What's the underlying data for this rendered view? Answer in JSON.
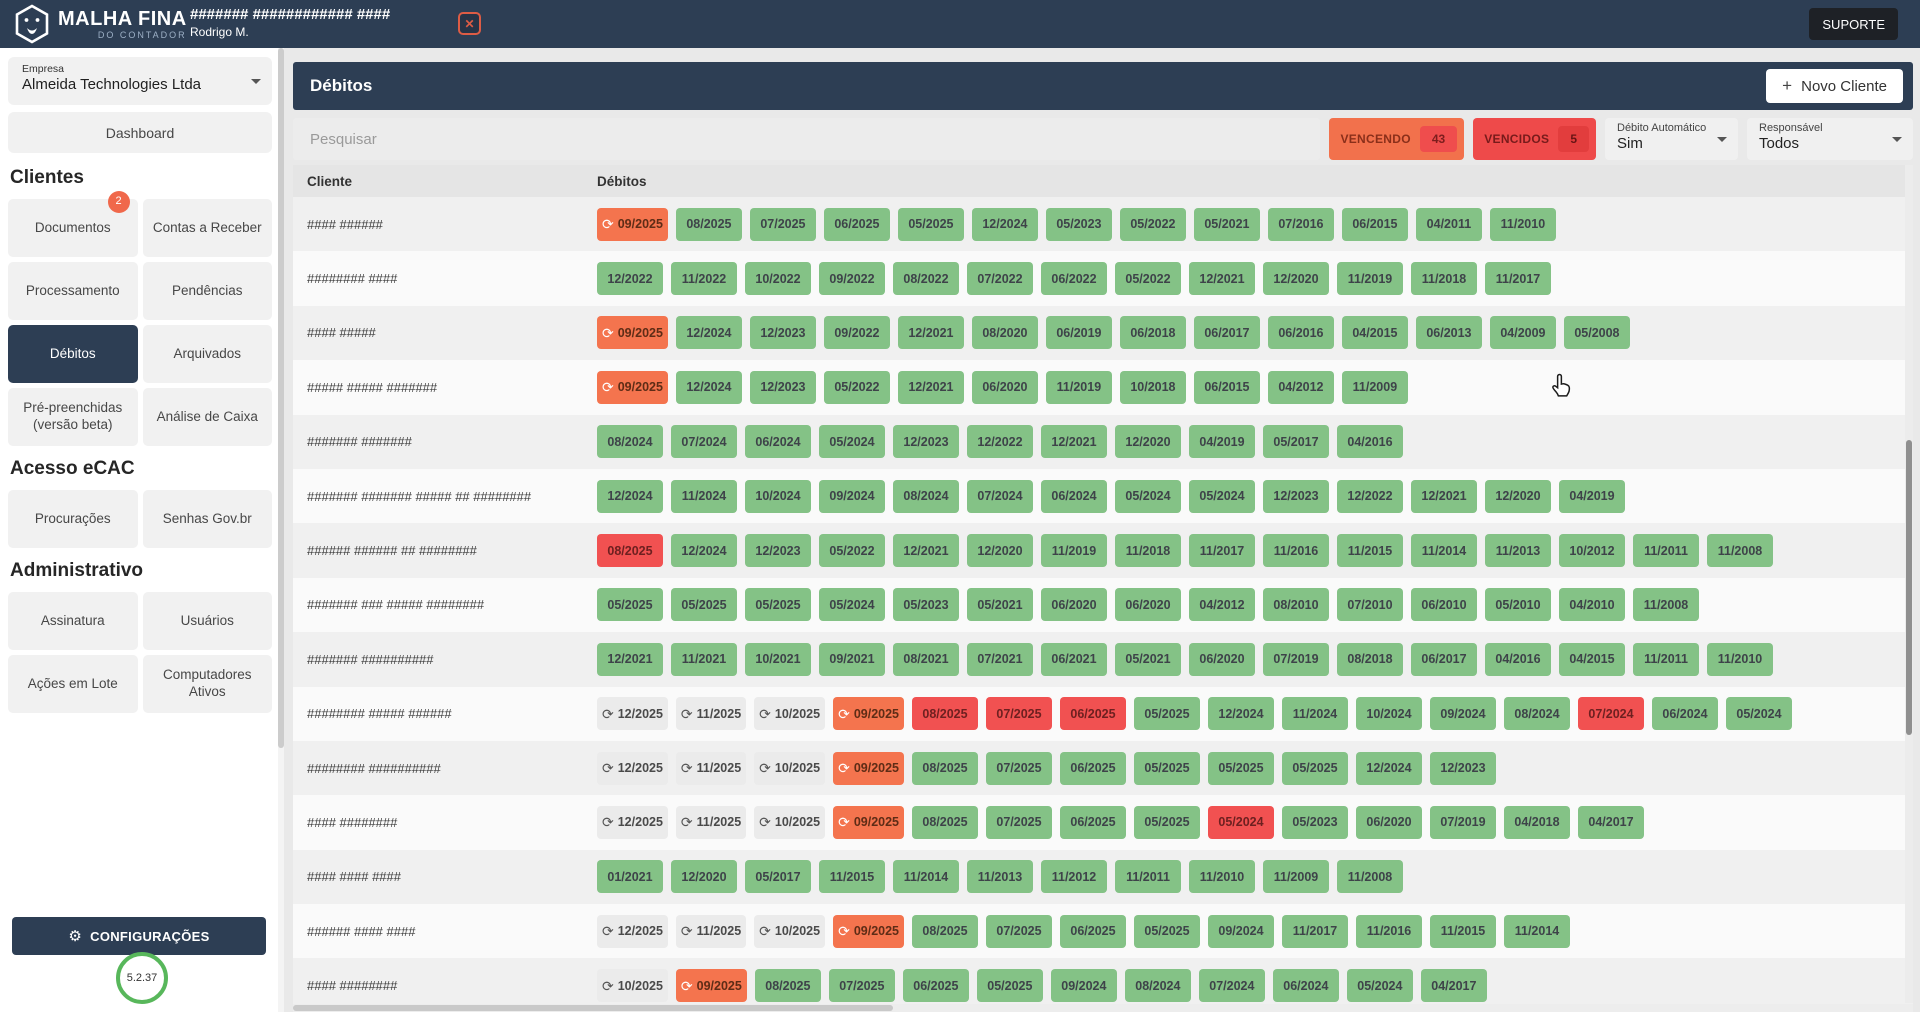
{
  "topbar": {
    "brand_line1": "MALHA FINA",
    "brand_line2": "DO CONTADOR",
    "title": "####### ############ ####",
    "subtitle": "Rodrigo M.",
    "close_glyph": "✕",
    "support_label": "SUPORTE"
  },
  "sidebar": {
    "company_label": "Empresa",
    "company_value": "Almeida Technologies Ltda",
    "dashboard_label": "Dashboard",
    "groups": [
      {
        "heading": "Clientes",
        "items": [
          {
            "label": "Documentos",
            "name": "documentos",
            "badge": "2"
          },
          {
            "label": "Contas a Receber",
            "name": "contas-a-receber"
          },
          {
            "label": "Processamento",
            "name": "processamento"
          },
          {
            "label": "Pendências",
            "name": "pendencias"
          },
          {
            "label": "Débitos",
            "name": "debitos",
            "active": true
          },
          {
            "label": "Arquivados",
            "name": "arquivados"
          },
          {
            "label": "Pré-preenchidas (versão beta)",
            "name": "pre-preenchidas"
          },
          {
            "label": "Análise de Caixa",
            "name": "analise-de-caixa"
          }
        ]
      },
      {
        "heading": "Acesso eCAC",
        "items": [
          {
            "label": "Procurações",
            "name": "procuracoes"
          },
          {
            "label": "Senhas Gov.br",
            "name": "senhas-govbr"
          }
        ]
      },
      {
        "heading": "Administrativo",
        "items": [
          {
            "label": "Assinatura",
            "name": "assinatura"
          },
          {
            "label": "Usuários",
            "name": "usuarios"
          },
          {
            "label": "Ações em Lote",
            "name": "acoes-em-lote"
          },
          {
            "label": "Computadores Ativos",
            "name": "computadores-ativos"
          }
        ]
      }
    ],
    "config_label": "CONFIGURAÇÕES",
    "config_gear": "⚙",
    "version": "5.2.37"
  },
  "main": {
    "page_title": "Débitos",
    "new_client_plus": "+",
    "new_client_label": "Novo Cliente",
    "search_placeholder": "Pesquisar",
    "filters": {
      "vencendo_label": "VENCENDO",
      "vencendo_count": "43",
      "vencidos_label": "VENCIDOS",
      "vencidos_count": "5",
      "debito_automatico_label": "Débito Automático",
      "debito_automatico_value": "Sim",
      "responsavel_label": "Responsável",
      "responsavel_value": "Todos"
    },
    "table": {
      "col_cliente": "Cliente",
      "col_debitos": "Débitos",
      "badge_kinds": {
        "g": "green-ok",
        "r": "red-overdue",
        "o": "orange-due-sync",
        "y": "gray-scheduled"
      },
      "sync_icon_glyph": "⟳",
      "rows": [
        {
          "client": "#### ######",
          "badges": [
            [
              "09/2025",
              "o"
            ],
            [
              "08/2025",
              "g"
            ],
            [
              "07/2025",
              "g"
            ],
            [
              "06/2025",
              "g"
            ],
            [
              "05/2025",
              "g"
            ],
            [
              "12/2024",
              "g"
            ],
            [
              "05/2023",
              "g"
            ],
            [
              "05/2022",
              "g"
            ],
            [
              "05/2021",
              "g"
            ],
            [
              "07/2016",
              "g"
            ],
            [
              "06/2015",
              "g"
            ],
            [
              "04/2011",
              "g"
            ],
            [
              "11/2010",
              "g"
            ]
          ]
        },
        {
          "client": "######## ####",
          "badges": [
            [
              "12/2022",
              "g"
            ],
            [
              "11/2022",
              "g"
            ],
            [
              "10/2022",
              "g"
            ],
            [
              "09/2022",
              "g"
            ],
            [
              "08/2022",
              "g"
            ],
            [
              "07/2022",
              "g"
            ],
            [
              "06/2022",
              "g"
            ],
            [
              "05/2022",
              "g"
            ],
            [
              "12/2021",
              "g"
            ],
            [
              "12/2020",
              "g"
            ],
            [
              "11/2019",
              "g"
            ],
            [
              "11/2018",
              "g"
            ],
            [
              "11/2017",
              "g"
            ]
          ]
        },
        {
          "client": "#### #####",
          "badges": [
            [
              "09/2025",
              "o"
            ],
            [
              "12/2024",
              "g"
            ],
            [
              "12/2023",
              "g"
            ],
            [
              "09/2022",
              "g"
            ],
            [
              "12/2021",
              "g"
            ],
            [
              "08/2020",
              "g"
            ],
            [
              "06/2019",
              "g"
            ],
            [
              "06/2018",
              "g"
            ],
            [
              "06/2017",
              "g"
            ],
            [
              "06/2016",
              "g"
            ],
            [
              "04/2015",
              "g"
            ],
            [
              "06/2013",
              "g"
            ],
            [
              "04/2009",
              "g"
            ],
            [
              "05/2008",
              "g"
            ]
          ]
        },
        {
          "client": "##### ##### #######",
          "badges": [
            [
              "09/2025",
              "o"
            ],
            [
              "12/2024",
              "g"
            ],
            [
              "12/2023",
              "g"
            ],
            [
              "05/2022",
              "g"
            ],
            [
              "12/2021",
              "g"
            ],
            [
              "06/2020",
              "g"
            ],
            [
              "11/2019",
              "g"
            ],
            [
              "10/2018",
              "g"
            ],
            [
              "06/2015",
              "g"
            ],
            [
              "04/2012",
              "g"
            ],
            [
              "11/2009",
              "g"
            ]
          ]
        },
        {
          "client": "####### #######",
          "badges": [
            [
              "08/2024",
              "g"
            ],
            [
              "07/2024",
              "g"
            ],
            [
              "06/2024",
              "g"
            ],
            [
              "05/2024",
              "g"
            ],
            [
              "12/2023",
              "g"
            ],
            [
              "12/2022",
              "g"
            ],
            [
              "12/2021",
              "g"
            ],
            [
              "12/2020",
              "g"
            ],
            [
              "04/2019",
              "g"
            ],
            [
              "05/2017",
              "g"
            ],
            [
              "04/2016",
              "g"
            ]
          ]
        },
        {
          "client": "####### ####### ##### ## ########",
          "badges": [
            [
              "12/2024",
              "g"
            ],
            [
              "11/2024",
              "g"
            ],
            [
              "10/2024",
              "g"
            ],
            [
              "09/2024",
              "g"
            ],
            [
              "08/2024",
              "g"
            ],
            [
              "07/2024",
              "g"
            ],
            [
              "06/2024",
              "g"
            ],
            [
              "05/2024",
              "g"
            ],
            [
              "05/2024",
              "g"
            ],
            [
              "12/2023",
              "g"
            ],
            [
              "12/2022",
              "g"
            ],
            [
              "12/2021",
              "g"
            ],
            [
              "12/2020",
              "g"
            ],
            [
              "04/2019",
              "g"
            ]
          ]
        },
        {
          "client": "###### ###### ## ########",
          "badges": [
            [
              "08/2025",
              "r"
            ],
            [
              "12/2024",
              "g"
            ],
            [
              "12/2023",
              "g"
            ],
            [
              "05/2022",
              "g"
            ],
            [
              "12/2021",
              "g"
            ],
            [
              "12/2020",
              "g"
            ],
            [
              "11/2019",
              "g"
            ],
            [
              "11/2018",
              "g"
            ],
            [
              "11/2017",
              "g"
            ],
            [
              "11/2016",
              "g"
            ],
            [
              "11/2015",
              "g"
            ],
            [
              "11/2014",
              "g"
            ],
            [
              "11/2013",
              "g"
            ],
            [
              "10/2012",
              "g"
            ],
            [
              "11/2011",
              "g"
            ],
            [
              "11/2008",
              "g"
            ]
          ]
        },
        {
          "client": "####### ### ##### ########",
          "badges": [
            [
              "05/2025",
              "g"
            ],
            [
              "05/2025",
              "g"
            ],
            [
              "05/2025",
              "g"
            ],
            [
              "05/2024",
              "g"
            ],
            [
              "05/2023",
              "g"
            ],
            [
              "05/2021",
              "g"
            ],
            [
              "06/2020",
              "g"
            ],
            [
              "06/2020",
              "g"
            ],
            [
              "04/2012",
              "g"
            ],
            [
              "08/2010",
              "g"
            ],
            [
              "07/2010",
              "g"
            ],
            [
              "06/2010",
              "g"
            ],
            [
              "05/2010",
              "g"
            ],
            [
              "04/2010",
              "g"
            ],
            [
              "11/2008",
              "g"
            ]
          ]
        },
        {
          "client": "####### ##########",
          "badges": [
            [
              "12/2021",
              "g"
            ],
            [
              "11/2021",
              "g"
            ],
            [
              "10/2021",
              "g"
            ],
            [
              "09/2021",
              "g"
            ],
            [
              "08/2021",
              "g"
            ],
            [
              "07/2021",
              "g"
            ],
            [
              "06/2021",
              "g"
            ],
            [
              "05/2021",
              "g"
            ],
            [
              "06/2020",
              "g"
            ],
            [
              "07/2019",
              "g"
            ],
            [
              "08/2018",
              "g"
            ],
            [
              "06/2017",
              "g"
            ],
            [
              "04/2016",
              "g"
            ],
            [
              "04/2015",
              "g"
            ],
            [
              "11/2011",
              "g"
            ],
            [
              "11/2010",
              "g"
            ]
          ]
        },
        {
          "client": "######## ##### ######",
          "badges": [
            [
              "12/2025",
              "y"
            ],
            [
              "11/2025",
              "y"
            ],
            [
              "10/2025",
              "y"
            ],
            [
              "09/2025",
              "o"
            ],
            [
              "08/2025",
              "r"
            ],
            [
              "07/2025",
              "r"
            ],
            [
              "06/2025",
              "r"
            ],
            [
              "05/2025",
              "g"
            ],
            [
              "12/2024",
              "g"
            ],
            [
              "11/2024",
              "g"
            ],
            [
              "10/2024",
              "g"
            ],
            [
              "09/2024",
              "g"
            ],
            [
              "08/2024",
              "g"
            ],
            [
              "07/2024",
              "r"
            ],
            [
              "06/2024",
              "g"
            ],
            [
              "05/2024",
              "g"
            ]
          ]
        },
        {
          "client": "######## ##########",
          "badges": [
            [
              "12/2025",
              "y"
            ],
            [
              "11/2025",
              "y"
            ],
            [
              "10/2025",
              "y"
            ],
            [
              "09/2025",
              "o"
            ],
            [
              "08/2025",
              "g"
            ],
            [
              "07/2025",
              "g"
            ],
            [
              "06/2025",
              "g"
            ],
            [
              "05/2025",
              "g"
            ],
            [
              "05/2025",
              "g"
            ],
            [
              "05/2025",
              "g"
            ],
            [
              "12/2024",
              "g"
            ],
            [
              "12/2023",
              "g"
            ]
          ]
        },
        {
          "client": "#### ########",
          "badges": [
            [
              "12/2025",
              "y"
            ],
            [
              "11/2025",
              "y"
            ],
            [
              "10/2025",
              "y"
            ],
            [
              "09/2025",
              "o"
            ],
            [
              "08/2025",
              "g"
            ],
            [
              "07/2025",
              "g"
            ],
            [
              "06/2025",
              "g"
            ],
            [
              "05/2025",
              "g"
            ],
            [
              "05/2024",
              "r"
            ],
            [
              "05/2023",
              "g"
            ],
            [
              "06/2020",
              "g"
            ],
            [
              "07/2019",
              "g"
            ],
            [
              "04/2018",
              "g"
            ],
            [
              "04/2017",
              "g"
            ]
          ]
        },
        {
          "client": "#### #### ####",
          "badges": [
            [
              "01/2021",
              "g"
            ],
            [
              "12/2020",
              "g"
            ],
            [
              "05/2017",
              "g"
            ],
            [
              "11/2015",
              "g"
            ],
            [
              "11/2014",
              "g"
            ],
            [
              "11/2013",
              "g"
            ],
            [
              "11/2012",
              "g"
            ],
            [
              "11/2011",
              "g"
            ],
            [
              "11/2010",
              "g"
            ],
            [
              "11/2009",
              "g"
            ],
            [
              "11/2008",
              "g"
            ]
          ]
        },
        {
          "client": "###### #### ####",
          "badges": [
            [
              "12/2025",
              "y"
            ],
            [
              "11/2025",
              "y"
            ],
            [
              "10/2025",
              "y"
            ],
            [
              "09/2025",
              "o"
            ],
            [
              "08/2025",
              "g"
            ],
            [
              "07/2025",
              "g"
            ],
            [
              "06/2025",
              "g"
            ],
            [
              "05/2025",
              "g"
            ],
            [
              "09/2024",
              "g"
            ],
            [
              "11/2017",
              "g"
            ],
            [
              "11/2016",
              "g"
            ],
            [
              "11/2015",
              "g"
            ],
            [
              "11/2014",
              "g"
            ]
          ]
        },
        {
          "client": "#### ########",
          "badges": [
            [
              "10/2025",
              "y"
            ],
            [
              "09/2025",
              "o"
            ],
            [
              "08/2025",
              "g"
            ],
            [
              "07/2025",
              "g"
            ],
            [
              "06/2025",
              "g"
            ],
            [
              "05/2025",
              "g"
            ],
            [
              "09/2024",
              "g"
            ],
            [
              "08/2024",
              "g"
            ],
            [
              "07/2024",
              "g"
            ],
            [
              "06/2024",
              "g"
            ],
            [
              "05/2024",
              "g"
            ],
            [
              "04/2017",
              "g"
            ]
          ]
        }
      ]
    }
  },
  "colors": {
    "navy": "#2d3e54",
    "green_badge": "#84c286",
    "red_badge": "#f15151",
    "orange_badge": "#f4744e",
    "gray_badge": "#ebebeb",
    "vencendo_chip": "#f2714c",
    "vencidos_chip": "#ee4a4a",
    "version_ring": "#58b75b",
    "notification_badge": "#f0684b"
  }
}
